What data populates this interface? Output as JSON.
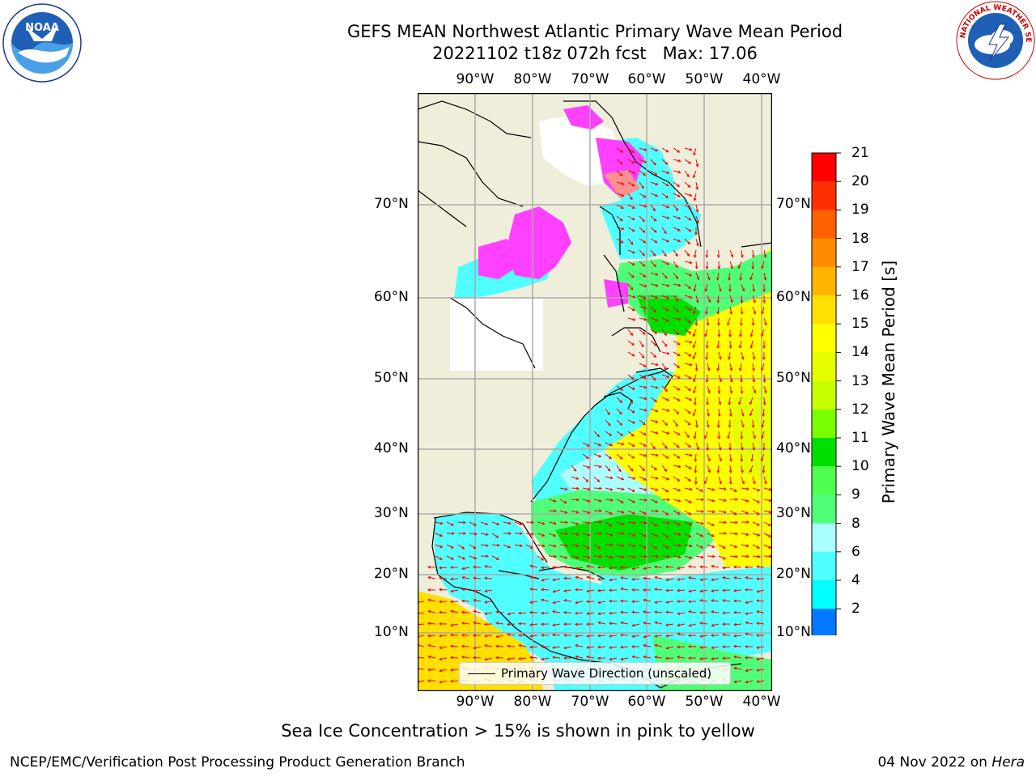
{
  "title": {
    "line1": "GEFS MEAN Northwest Atlantic Primary Wave Mean Period",
    "line2": "20221102 t18z 072h fcst   Max: 17.06"
  },
  "map": {
    "lon_labels": [
      "90°W",
      "80°W",
      "70°W",
      "60°W",
      "50°W",
      "40°W"
    ],
    "lat_labels": [
      "70°N",
      "60°N",
      "50°N",
      "40°N",
      "30°N",
      "20°N",
      "10°N"
    ],
    "land_color": "#efeedb",
    "legend_label": "Primary Wave Direction (unscaled)",
    "arrow_color": "#ff0000"
  },
  "colorbar": {
    "label": "Primary Wave Mean Period [s]",
    "ticks": [
      "21",
      "20",
      "19",
      "18",
      "17",
      "16",
      "15",
      "14",
      "13",
      "12",
      "11",
      "10",
      "9",
      "8",
      "6",
      "4",
      "2"
    ],
    "colors": [
      "#ff0000",
      "#ff3000",
      "#ff6000",
      "#ff8c00",
      "#ffb400",
      "#ffe000",
      "#ffff00",
      "#e6ff00",
      "#c8ff00",
      "#78ff00",
      "#00e000",
      "#50ff50",
      "#50ff78",
      "#aaffff",
      "#50ffff",
      "#00ffff",
      "#0078ff"
    ],
    "extend_color": "#0000ff"
  },
  "logos": {
    "noaa": "NOAA",
    "nws": "NATIONAL WEATHER SERVICE"
  },
  "ice_note": "Sea Ice Concentration > 15% is shown in pink to yellow",
  "footer": {
    "left": "NCEP/EMC/Verification Post Processing Product Generation Branch",
    "date": "04 Nov 2022 on ",
    "host": "Hera"
  }
}
